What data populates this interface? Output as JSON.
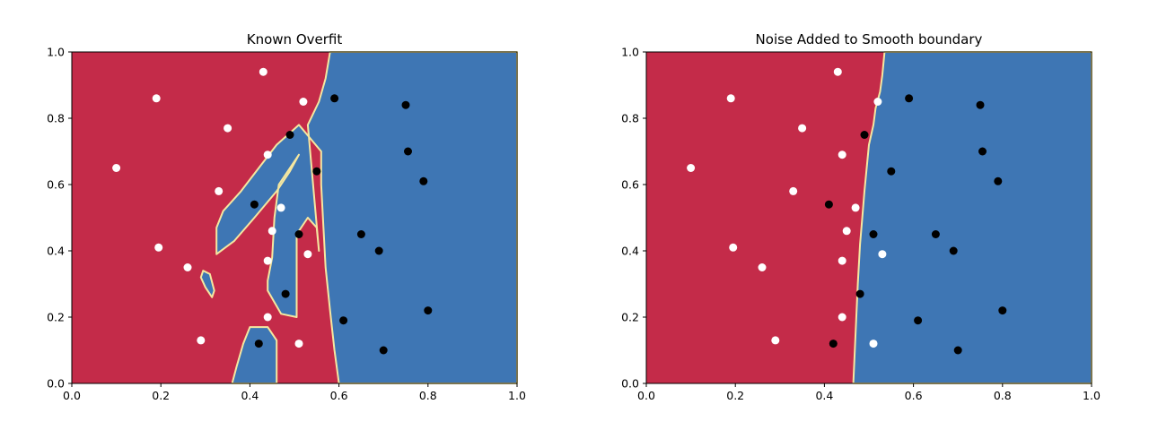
{
  "chart_data": [
    {
      "type": "scatter",
      "title": "Known Overfit",
      "xlim": [
        0,
        1
      ],
      "ylim": [
        0,
        1
      ],
      "xticks": [
        "0.0",
        "0.2",
        "0.4",
        "0.6",
        "0.8",
        "1.0"
      ],
      "yticks": [
        "0.0",
        "0.2",
        "0.4",
        "0.6",
        "0.8",
        "1.0"
      ],
      "region_colors": {
        "class_0": "#c42b49",
        "class_1": "#3e76b4",
        "edge": "#f5e7a0"
      },
      "decision_region": {
        "class_1_polygons": [
          [
            [
              0.59,
              1.0
            ],
            [
              1.0,
              1.0
            ],
            [
              1.0,
              0.0
            ],
            [
              0.6,
              0.0
            ],
            [
              0.59,
              0.1
            ],
            [
              0.58,
              0.22
            ],
            [
              0.57,
              0.35
            ],
            [
              0.56,
              0.6
            ],
            [
              0.56,
              0.7
            ],
            [
              0.51,
              0.78
            ],
            [
              0.46,
              0.72
            ],
            [
              0.42,
              0.65
            ],
            [
              0.38,
              0.58
            ],
            [
              0.34,
              0.52
            ],
            [
              0.325,
              0.47
            ],
            [
              0.325,
              0.39
            ],
            [
              0.365,
              0.43
            ],
            [
              0.41,
              0.5
            ],
            [
              0.46,
              0.58
            ],
            [
              0.49,
              0.64
            ],
            [
              0.51,
              0.69
            ],
            [
              0.465,
              0.6
            ],
            [
              0.455,
              0.5
            ],
            [
              0.45,
              0.38
            ],
            [
              0.44,
              0.31
            ],
            [
              0.44,
              0.28
            ],
            [
              0.47,
              0.21
            ],
            [
              0.505,
              0.2
            ],
            [
              0.505,
              0.45
            ],
            [
              0.53,
              0.5
            ],
            [
              0.55,
              0.47
            ],
            [
              0.555,
              0.4
            ],
            [
              0.53,
              0.78
            ],
            [
              0.555,
              0.85
            ],
            [
              0.57,
              0.92
            ],
            [
              0.58,
              1.0
            ]
          ],
          [
            [
              0.295,
              0.34
            ],
            [
              0.31,
              0.33
            ],
            [
              0.32,
              0.28
            ],
            [
              0.315,
              0.26
            ],
            [
              0.3,
              0.29
            ],
            [
              0.29,
              0.32
            ]
          ],
          [
            [
              0.36,
              0.0
            ],
            [
              0.46,
              0.0
            ],
            [
              0.46,
              0.13
            ],
            [
              0.44,
              0.17
            ],
            [
              0.4,
              0.17
            ],
            [
              0.385,
              0.12
            ],
            [
              0.37,
              0.05
            ]
          ]
        ]
      },
      "series": [
        {
          "color": "#ffffff",
          "points": [
            [
              0.43,
              0.94
            ],
            [
              0.19,
              0.86
            ],
            [
              0.52,
              0.85
            ],
            [
              0.35,
              0.77
            ],
            [
              0.44,
              0.69
            ],
            [
              0.1,
              0.65
            ],
            [
              0.33,
              0.58
            ],
            [
              0.47,
              0.53
            ],
            [
              0.45,
              0.46
            ],
            [
              0.195,
              0.41
            ],
            [
              0.53,
              0.39
            ],
            [
              0.44,
              0.37
            ],
            [
              0.26,
              0.35
            ],
            [
              0.44,
              0.2
            ],
            [
              0.29,
              0.13
            ],
            [
              0.51,
              0.12
            ]
          ]
        },
        {
          "color": "#000000",
          "points": [
            [
              0.59,
              0.86
            ],
            [
              0.75,
              0.84
            ],
            [
              0.49,
              0.75
            ],
            [
              0.755,
              0.7
            ],
            [
              0.55,
              0.64
            ],
            [
              0.79,
              0.61
            ],
            [
              0.41,
              0.54
            ],
            [
              0.51,
              0.45
            ],
            [
              0.65,
              0.45
            ],
            [
              0.69,
              0.4
            ],
            [
              0.48,
              0.27
            ],
            [
              0.8,
              0.22
            ],
            [
              0.61,
              0.19
            ],
            [
              0.42,
              0.12
            ],
            [
              0.7,
              0.1
            ]
          ]
        }
      ]
    },
    {
      "type": "scatter",
      "title": "Noise Added to Smooth boundary",
      "xlim": [
        0,
        1
      ],
      "ylim": [
        0,
        1
      ],
      "xticks": [
        "0.0",
        "0.2",
        "0.4",
        "0.6",
        "0.8",
        "1.0"
      ],
      "yticks": [
        "0.0",
        "0.2",
        "0.4",
        "0.6",
        "0.8",
        "1.0"
      ],
      "region_colors": {
        "class_0": "#c42b49",
        "class_1": "#3e76b4",
        "edge": "#f5e7a0"
      },
      "decision_region": {
        "class_1_polygons": [
          [
            [
              0.535,
              1.0
            ],
            [
              1.0,
              1.0
            ],
            [
              1.0,
              0.0
            ],
            [
              0.465,
              0.0
            ],
            [
              0.47,
              0.15
            ],
            [
              0.475,
              0.3
            ],
            [
              0.48,
              0.42
            ],
            [
              0.485,
              0.5
            ],
            [
              0.49,
              0.58
            ],
            [
              0.495,
              0.65
            ],
            [
              0.5,
              0.72
            ],
            [
              0.51,
              0.78
            ],
            [
              0.515,
              0.83
            ],
            [
              0.525,
              0.88
            ],
            [
              0.53,
              0.93
            ]
          ]
        ]
      },
      "series": [
        {
          "color": "#ffffff",
          "points": [
            [
              0.43,
              0.94
            ],
            [
              0.19,
              0.86
            ],
            [
              0.52,
              0.85
            ],
            [
              0.35,
              0.77
            ],
            [
              0.44,
              0.69
            ],
            [
              0.1,
              0.65
            ],
            [
              0.33,
              0.58
            ],
            [
              0.47,
              0.53
            ],
            [
              0.45,
              0.46
            ],
            [
              0.195,
              0.41
            ],
            [
              0.53,
              0.39
            ],
            [
              0.44,
              0.37
            ],
            [
              0.26,
              0.35
            ],
            [
              0.44,
              0.2
            ],
            [
              0.29,
              0.13
            ],
            [
              0.51,
              0.12
            ]
          ]
        },
        {
          "color": "#000000",
          "points": [
            [
              0.59,
              0.86
            ],
            [
              0.75,
              0.84
            ],
            [
              0.49,
              0.75
            ],
            [
              0.755,
              0.7
            ],
            [
              0.55,
              0.64
            ],
            [
              0.79,
              0.61
            ],
            [
              0.41,
              0.54
            ],
            [
              0.51,
              0.45
            ],
            [
              0.65,
              0.45
            ],
            [
              0.69,
              0.4
            ],
            [
              0.48,
              0.27
            ],
            [
              0.8,
              0.22
            ],
            [
              0.61,
              0.19
            ],
            [
              0.42,
              0.12
            ],
            [
              0.7,
              0.1
            ]
          ]
        }
      ]
    }
  ]
}
